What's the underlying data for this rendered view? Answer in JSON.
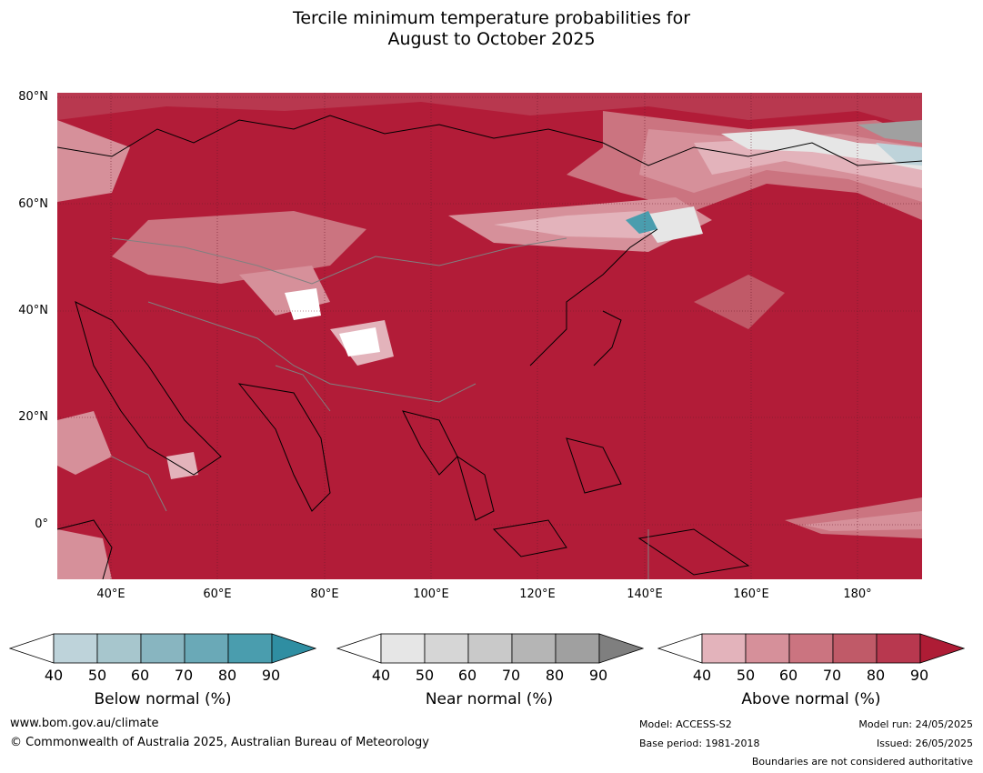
{
  "title_line1": "Tercile minimum temperature probabilities for",
  "title_line2": "August to October 2025",
  "map": {
    "lat_labels": [
      "80°N",
      "60°N",
      "40°N",
      "20°N",
      "0°"
    ],
    "lon_labels": [
      "40°E",
      "60°E",
      "80°E",
      "100°E",
      "120°E",
      "140°E",
      "160°E",
      "180°"
    ],
    "base_color": "#b21c38"
  },
  "colorbars": [
    {
      "title": "Below normal (%)",
      "ticks": [
        "40",
        "50",
        "60",
        "70",
        "80",
        "90"
      ],
      "colors": [
        "#ffffff",
        "#bed3da",
        "#a7c6cd",
        "#88b5c0",
        "#6aa9b7",
        "#4a9dae",
        "#2f8ea2"
      ]
    },
    {
      "title": "Near normal (%)",
      "ticks": [
        "40",
        "50",
        "60",
        "70",
        "80",
        "90"
      ],
      "colors": [
        "#ffffff",
        "#e6e6e6",
        "#d6d6d6",
        "#c9c9c9",
        "#b5b5b5",
        "#a0a0a0",
        "#7f7f7f"
      ]
    },
    {
      "title": "Above normal (%)",
      "ticks": [
        "40",
        "50",
        "60",
        "70",
        "80",
        "90"
      ],
      "colors": [
        "#ffffff",
        "#e3b3bb",
        "#d6909a",
        "#cb7480",
        "#c05a68",
        "#b8384f",
        "#ae1c35"
      ]
    }
  ],
  "footer": {
    "website": "www.bom.gov.au/climate",
    "copyright": "© Commonwealth of Australia 2025, Australian Bureau of Meteorology",
    "model": "Model: ACCESS-S2",
    "base_period": "Base period: 1981-2018",
    "model_run": "Model run: 24/05/2025",
    "issued": "Issued: 26/05/2025",
    "boundaries": "Boundaries are not considered authoritative"
  }
}
